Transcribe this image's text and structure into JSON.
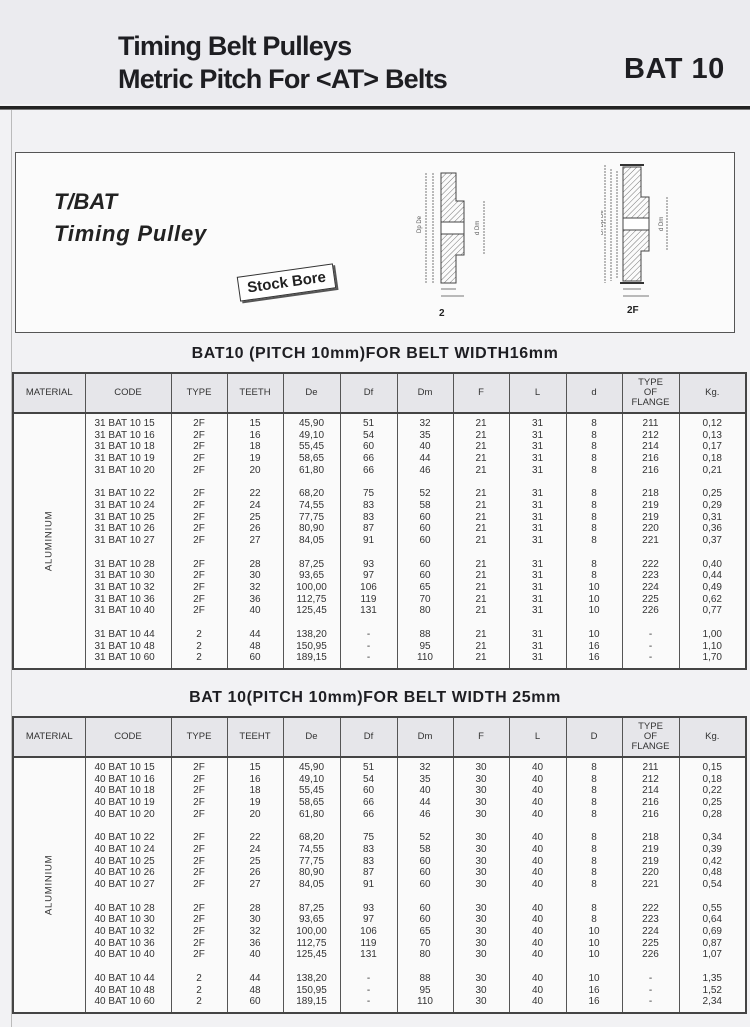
{
  "header": {
    "title_line1": "Timing Belt Pulleys",
    "title_line2": "Metric Pitch For <AT> Belts",
    "code": "BAT 10"
  },
  "product": {
    "title": "T/BAT",
    "subtitle": "Timing Pulley",
    "stock_label": "Stock Bore",
    "diagrams": [
      {
        "label": "2",
        "dims": [
          "Dp",
          "De",
          "d",
          "Dm",
          "F",
          "L"
        ]
      },
      {
        "label": "2F",
        "dims": [
          "Df",
          "Dp",
          "De",
          "d",
          "Dm",
          "F",
          "L"
        ]
      }
    ]
  },
  "tables": [
    {
      "title": "BAT10 (PITCH 10mm)FOR BELT WIDTH16mm",
      "headers": [
        "MATERIAL",
        "CODE",
        "TYPE",
        "TEETH",
        "De",
        "Df",
        "Dm",
        "F",
        "L",
        "d",
        "TYPE OF FLANGE",
        "Kg."
      ],
      "material": "ALUMINIUM",
      "groups": [
        [
          [
            "31 BAT 10 15",
            "2F",
            "15",
            "45,90",
            "51",
            "32",
            "21",
            "31",
            "8",
            "211",
            "0,12"
          ],
          [
            "31 BAT 10 16",
            "2F",
            "16",
            "49,10",
            "54",
            "35",
            "21",
            "31",
            "8",
            "212",
            "0,13"
          ],
          [
            "31 BAT 10 18",
            "2F",
            "18",
            "55,45",
            "60",
            "40",
            "21",
            "31",
            "8",
            "214",
            "0,17"
          ],
          [
            "31 BAT 10 19",
            "2F",
            "19",
            "58,65",
            "66",
            "44",
            "21",
            "31",
            "8",
            "216",
            "0,18"
          ],
          [
            "31 BAT 10 20",
            "2F",
            "20",
            "61,80",
            "66",
            "46",
            "21",
            "31",
            "8",
            "216",
            "0,21"
          ]
        ],
        [
          [
            "31 BAT 10 22",
            "2F",
            "22",
            "68,20",
            "75",
            "52",
            "21",
            "31",
            "8",
            "218",
            "0,25"
          ],
          [
            "31 BAT 10 24",
            "2F",
            "24",
            "74,55",
            "83",
            "58",
            "21",
            "31",
            "8",
            "219",
            "0,29"
          ],
          [
            "31 BAT 10 25",
            "2F",
            "25",
            "77,75",
            "83",
            "60",
            "21",
            "31",
            "8",
            "219",
            "0,31"
          ],
          [
            "31 BAT 10 26",
            "2F",
            "26",
            "80,90",
            "87",
            "60",
            "21",
            "31",
            "8",
            "220",
            "0,36"
          ],
          [
            "31 BAT 10 27",
            "2F",
            "27",
            "84,05",
            "91",
            "60",
            "21",
            "31",
            "8",
            "221",
            "0,37"
          ]
        ],
        [
          [
            "31 BAT 10 28",
            "2F",
            "28",
            "87,25",
            "93",
            "60",
            "21",
            "31",
            "8",
            "222",
            "0,40"
          ],
          [
            "31 BAT 10 30",
            "2F",
            "30",
            "93,65",
            "97",
            "60",
            "21",
            "31",
            "8",
            "223",
            "0,44"
          ],
          [
            "31 BAT 10 32",
            "2F",
            "32",
            "100,00",
            "106",
            "65",
            "21",
            "31",
            "10",
            "224",
            "0,49"
          ],
          [
            "31 BAT 10 36",
            "2F",
            "36",
            "112,75",
            "119",
            "70",
            "21",
            "31",
            "10",
            "225",
            "0,62"
          ],
          [
            "31 BAT 10 40",
            "2F",
            "40",
            "125,45",
            "131",
            "80",
            "21",
            "31",
            "10",
            "226",
            "0,77"
          ]
        ],
        [
          [
            "31 BAT 10 44",
            "2",
            "44",
            "138,20",
            "-",
            "88",
            "21",
            "31",
            "10",
            "-",
            "1,00"
          ],
          [
            "31 BAT 10 48",
            "2",
            "48",
            "150,95",
            "-",
            "95",
            "21",
            "31",
            "16",
            "-",
            "1,10"
          ],
          [
            "31 BAT 10 60",
            "2",
            "60",
            "189,15",
            "-",
            "110",
            "21",
            "31",
            "16",
            "-",
            "1,70"
          ]
        ]
      ]
    },
    {
      "title": "BAT 10(PITCH 10mm)FOR BELT WIDTH 25mm",
      "headers": [
        "MATERIAL",
        "CODE",
        "TYPE",
        "TEEHT",
        "De",
        "Df",
        "Dm",
        "F",
        "L",
        "D",
        "TYPE OF FLANGE",
        "Kg."
      ],
      "material": "ALUMINIUM",
      "groups": [
        [
          [
            "40 BAT 10 15",
            "2F",
            "15",
            "45,90",
            "51",
            "32",
            "30",
            "40",
            "8",
            "211",
            "0,15"
          ],
          [
            "40 BAT 10 16",
            "2F",
            "16",
            "49,10",
            "54",
            "35",
            "30",
            "40",
            "8",
            "212",
            "0,18"
          ],
          [
            "40 BAT 10 18",
            "2F",
            "18",
            "55,45",
            "60",
            "40",
            "30",
            "40",
            "8",
            "214",
            "0,22"
          ],
          [
            "40 BAT 10 19",
            "2F",
            "19",
            "58,65",
            "66",
            "44",
            "30",
            "40",
            "8",
            "216",
            "0,25"
          ],
          [
            "40 BAT 10 20",
            "2F",
            "20",
            "61,80",
            "66",
            "46",
            "30",
            "40",
            "8",
            "216",
            "0,28"
          ]
        ],
        [
          [
            "40 BAT 10 22",
            "2F",
            "22",
            "68,20",
            "75",
            "52",
            "30",
            "40",
            "8",
            "218",
            "0,34"
          ],
          [
            "40 BAT 10 24",
            "2F",
            "24",
            "74,55",
            "83",
            "58",
            "30",
            "40",
            "8",
            "219",
            "0,39"
          ],
          [
            "40 BAT 10 25",
            "2F",
            "25",
            "77,75",
            "83",
            "60",
            "30",
            "40",
            "8",
            "219",
            "0,42"
          ],
          [
            "40 BAT 10 26",
            "2F",
            "26",
            "80,90",
            "87",
            "60",
            "30",
            "40",
            "8",
            "220",
            "0,48"
          ],
          [
            "40 BAT 10 27",
            "2F",
            "27",
            "84,05",
            "91",
            "60",
            "30",
            "40",
            "8",
            "221",
            "0,54"
          ]
        ],
        [
          [
            "40 BAT 10 28",
            "2F",
            "28",
            "87,25",
            "93",
            "60",
            "30",
            "40",
            "8",
            "222",
            "0,55"
          ],
          [
            "40 BAT 10 30",
            "2F",
            "30",
            "93,65",
            "97",
            "60",
            "30",
            "40",
            "8",
            "223",
            "0,64"
          ],
          [
            "40 BAT 10 32",
            "2F",
            "32",
            "100,00",
            "106",
            "65",
            "30",
            "40",
            "10",
            "224",
            "0,69"
          ],
          [
            "40 BAT 10 36",
            "2F",
            "36",
            "112,75",
            "119",
            "70",
            "30",
            "40",
            "10",
            "225",
            "0,87"
          ],
          [
            "40 BAT 10 40",
            "2F",
            "40",
            "125,45",
            "131",
            "80",
            "30",
            "40",
            "10",
            "226",
            "1,07"
          ]
        ],
        [
          [
            "40 BAT 10 44",
            "2",
            "44",
            "138,20",
            "-",
            "88",
            "30",
            "40",
            "10",
            "-",
            "1,35"
          ],
          [
            "40 BAT 10 48",
            "2",
            "48",
            "150,95",
            "-",
            "95",
            "30",
            "40",
            "16",
            "-",
            "1,52"
          ],
          [
            "40 BAT 10 60",
            "2",
            "60",
            "189,15",
            "-",
            "110",
            "30",
            "40",
            "16",
            "-",
            "2,34"
          ]
        ]
      ]
    }
  ]
}
